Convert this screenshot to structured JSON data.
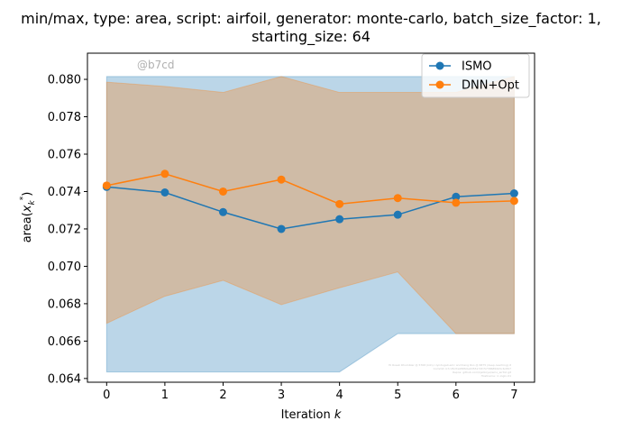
{
  "chart_data": {
    "type": "line",
    "title_line1": "min/max, type: area, script: airfoil, generator: monte-carlo, batch_size_factor: 1,",
    "title_line2": "starting_size: 64",
    "xlabel": "Iteration",
    "xlabel_var": "k",
    "ylabel": "area(",
    "ylabel_var": "x",
    "ylabel_sub": "k",
    "ylabel_sup": "*",
    "ylabel_close": ")",
    "xlim": [
      -0.33,
      7.35
    ],
    "ylim": [
      0.0638,
      0.0814
    ],
    "x_ticks": [
      0,
      1,
      2,
      3,
      4,
      5,
      6,
      7
    ],
    "x_tick_labels": [
      "0",
      "1",
      "2",
      "3",
      "4",
      "5",
      "6",
      "7"
    ],
    "y_ticks": [
      0.064,
      0.066,
      0.068,
      0.07,
      0.072,
      0.074,
      0.076,
      0.078,
      0.08
    ],
    "y_tick_labels": [
      "0.064",
      "0.066",
      "0.068",
      "0.070",
      "0.072",
      "0.074",
      "0.076",
      "0.078",
      "0.080"
    ],
    "grid": false,
    "legend_position": "top-right",
    "watermark": "@b7cd",
    "footnote_lines": [
      "Hi Roseli Rhumbler @ 5768 (kiln) r-lyndugall.emc and Kang Roo @ 6875 (deep-reaching).it",
      "Commit: b7cd5d7e0f6fb0e9355172fc57386850b5c6c897",
      "Repos: github.com/kjetil-lye/ismo_airfoil.git",
      "Hostname: rc-login-01"
    ],
    "series": [
      {
        "name": "ISMO",
        "color": "#1f77b4",
        "x": [
          0,
          1,
          2,
          3,
          4,
          5,
          6,
          7
        ],
        "y": [
          0.07425,
          0.07395,
          0.0729,
          0.072,
          0.07252,
          0.07276,
          0.07372,
          0.0739
        ],
        "band_min": [
          0.06435,
          0.06435,
          0.06435,
          0.06435,
          0.06435,
          0.0664,
          0.0664,
          0.0664
        ],
        "band_max": [
          0.08015,
          0.08015,
          0.08015,
          0.08015,
          0.08015,
          0.08015,
          0.08015,
          0.08015
        ]
      },
      {
        "name": "DNN+Opt",
        "color": "#ff7f0e",
        "x": [
          0,
          1,
          2,
          3,
          4,
          5,
          6,
          7
        ],
        "y": [
          0.07432,
          0.07495,
          0.074,
          0.07464,
          0.07333,
          0.07365,
          0.0734,
          0.0735
        ],
        "band_min": [
          0.06695,
          0.0684,
          0.06925,
          0.06795,
          0.06885,
          0.0697,
          0.0664,
          0.0664
        ],
        "band_max": [
          0.07985,
          0.07962,
          0.0793,
          0.08015,
          0.0793,
          0.0793,
          0.0793,
          0.08015
        ]
      }
    ]
  }
}
